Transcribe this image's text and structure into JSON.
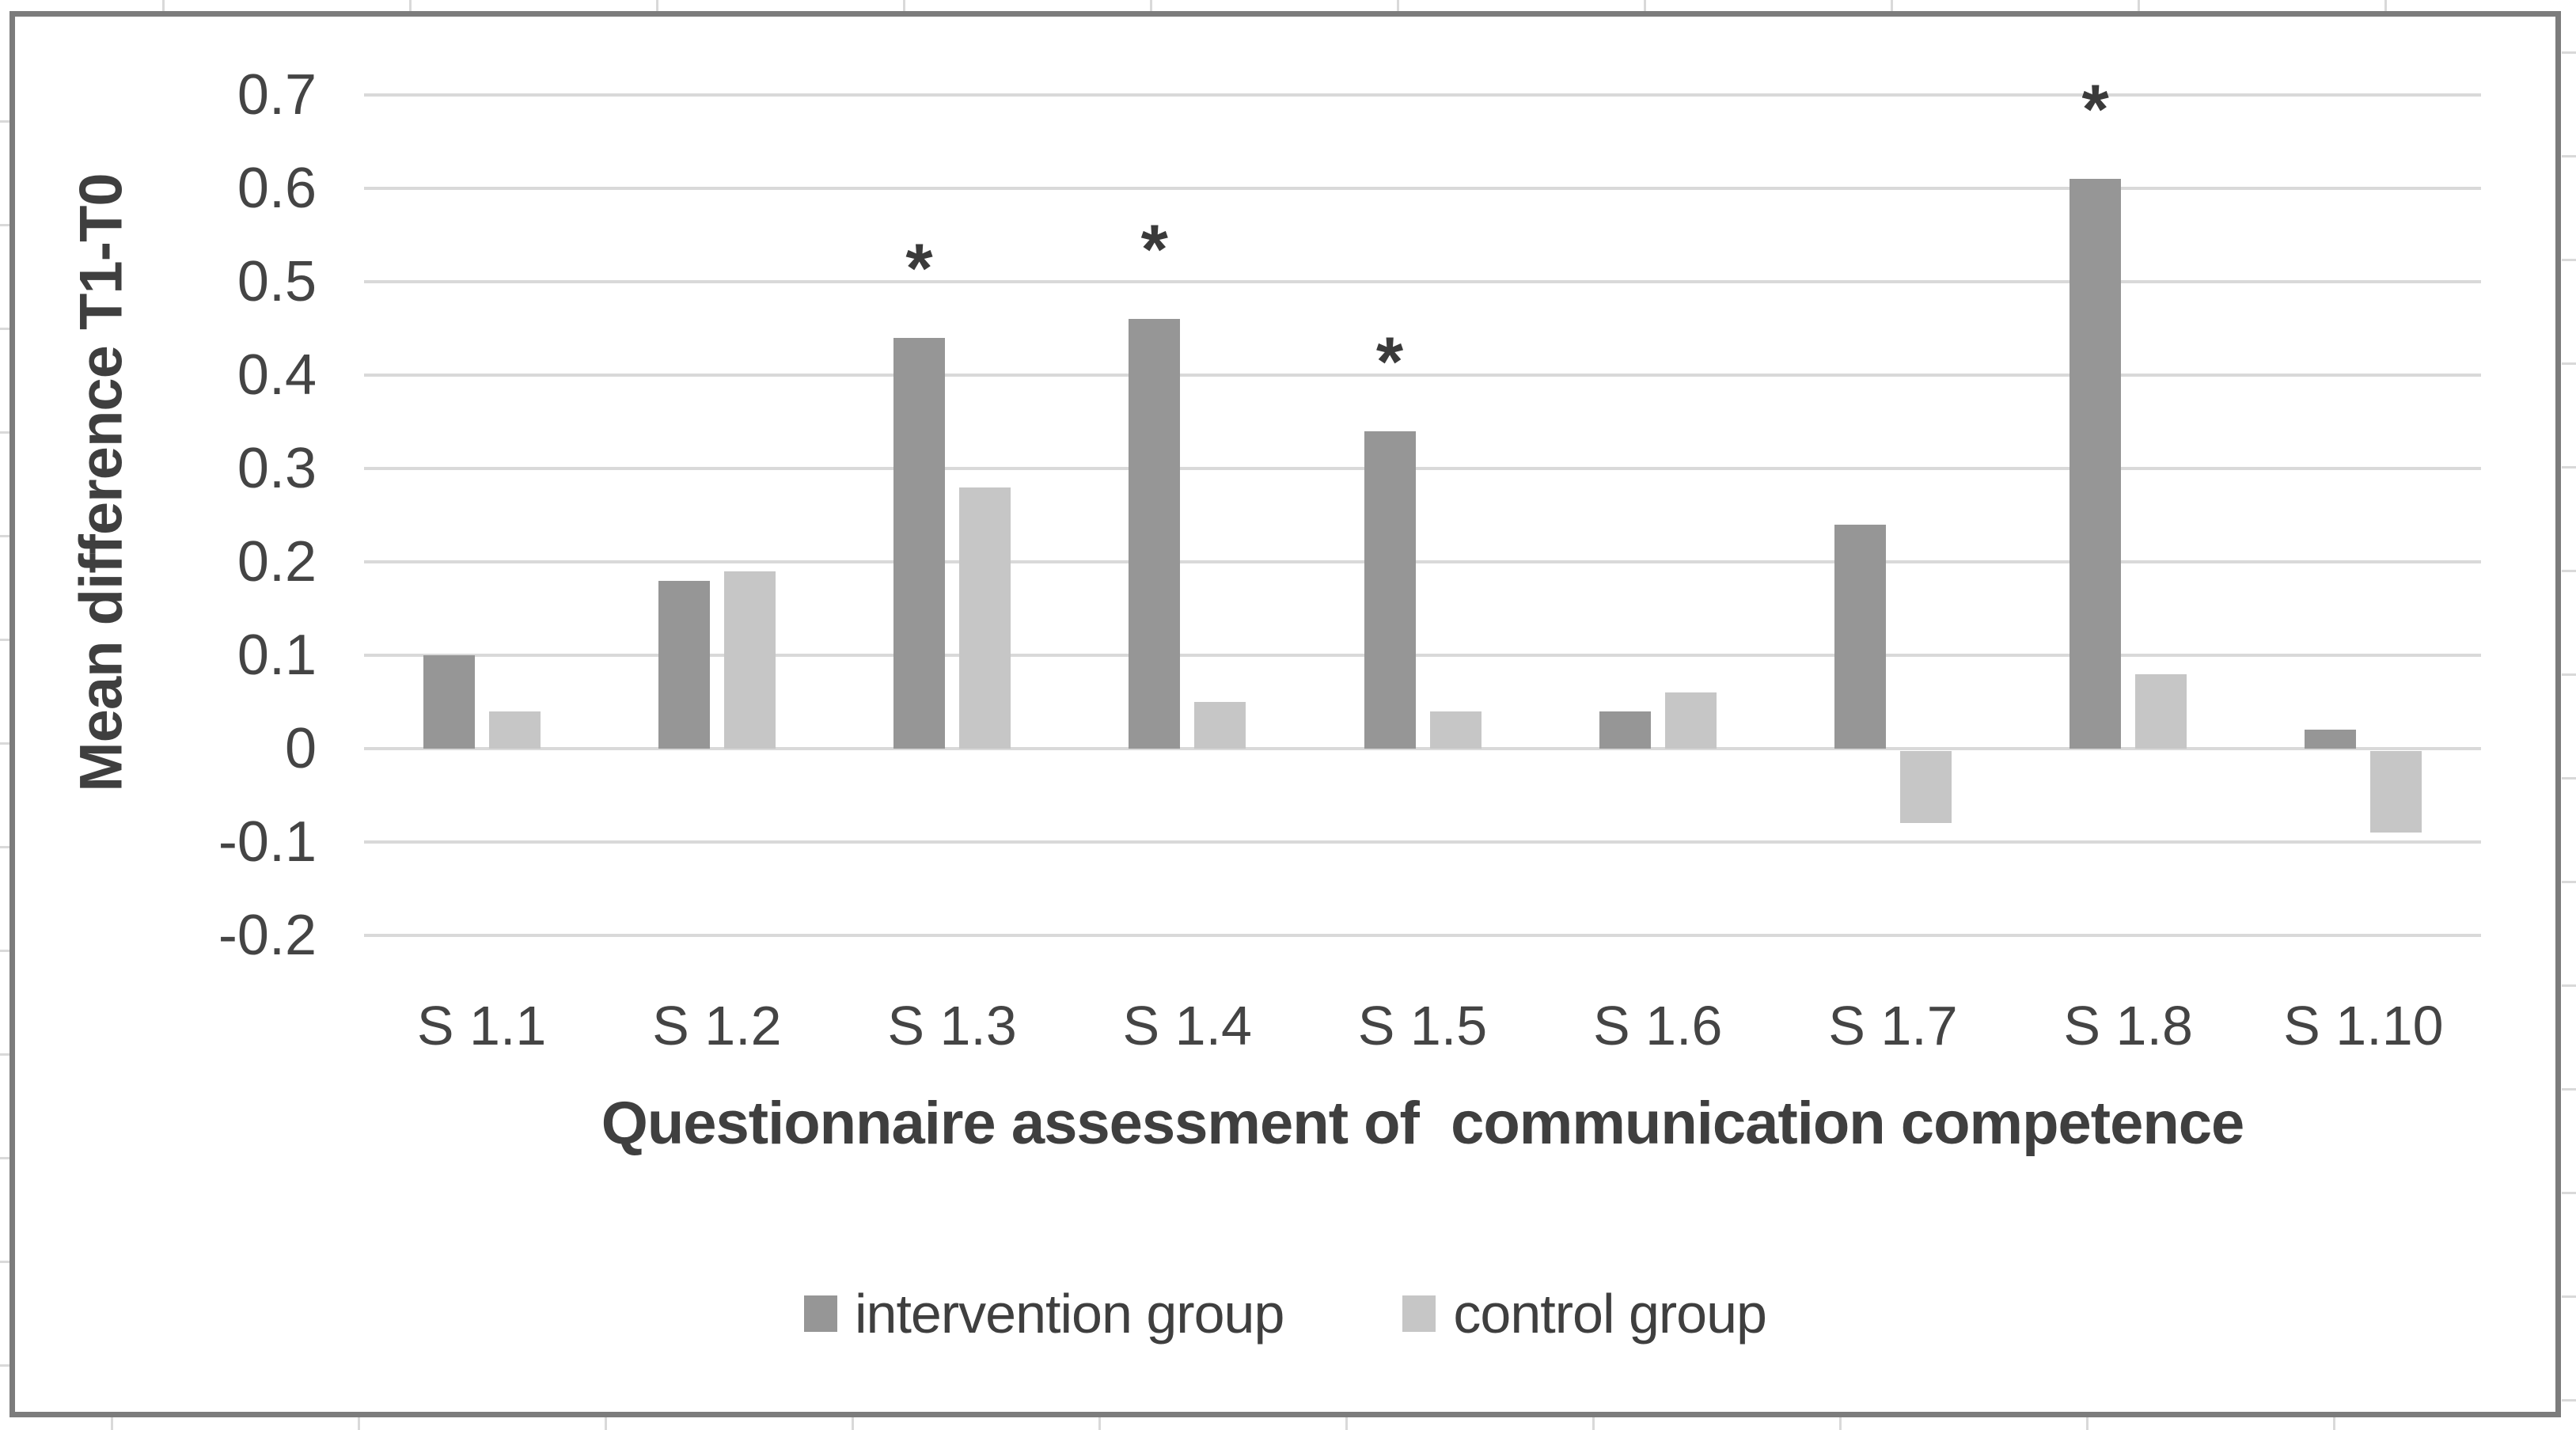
{
  "chart_data": {
    "type": "bar",
    "title": "",
    "xlabel": "Questionnaire assessment of  communication competence",
    "ylabel": "Mean difference T1-T0",
    "categories": [
      "S 1.1",
      "S 1.2",
      "S 1.3",
      "S 1.4",
      "S 1.5",
      "S 1.6",
      "S 1.7",
      "S 1.8",
      "S 1.10"
    ],
    "series": [
      {
        "name": "intervention group",
        "color": "#969696",
        "values": [
          0.1,
          0.18,
          0.44,
          0.46,
          0.34,
          0.04,
          0.24,
          0.61,
          0.02
        ]
      },
      {
        "name": "control group",
        "color": "#c6c6c6",
        "values": [
          0.04,
          0.19,
          0.28,
          0.05,
          0.04,
          0.06,
          -0.08,
          0.08,
          -0.09
        ]
      }
    ],
    "significance": {
      "marker": "*",
      "series": "intervention group",
      "categories": [
        "S 1.3",
        "S 1.4",
        "S 1.5",
        "S 1.8"
      ]
    },
    "ylim": [
      -0.2,
      0.7
    ],
    "yticks": [
      0.7,
      0.6,
      0.5,
      0.4,
      0.3,
      0.2,
      0.1,
      0,
      -0.1,
      -0.2
    ],
    "ytick_labels": [
      "0.7",
      "0.6",
      "0.5",
      "0.4",
      "0.3",
      "0.2",
      "0.1",
      "0",
      "-0.1",
      "-0.2"
    ],
    "grid": true,
    "legend_position": "bottom",
    "colors": {
      "gridline": "#d9d9d9",
      "frame_border": "#7c7c7c",
      "tick_text": "#444444",
      "title_text": "#3f3f3f",
      "asterisk": "#3a3a3a"
    }
  }
}
